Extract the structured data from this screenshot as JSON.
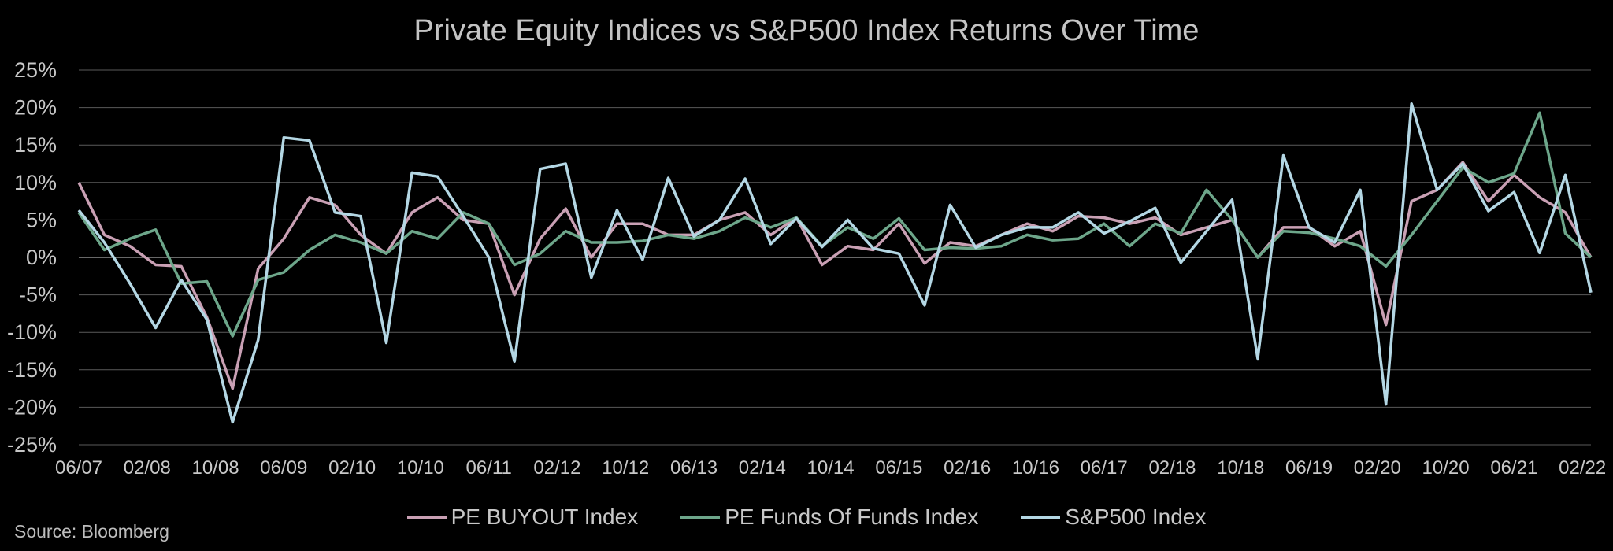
{
  "chart_data": {
    "type": "line",
    "title": "Private Equity Indices vs S&P500 Index Returns Over Time",
    "xlabel": "",
    "ylabel": "",
    "ylim": [
      -25,
      25
    ],
    "y_ticks": [
      25,
      20,
      15,
      10,
      5,
      0,
      -5,
      -10,
      -15,
      -20,
      -25
    ],
    "y_tick_labels": [
      "25%",
      "20%",
      "15%",
      "10%",
      "5%",
      "0%",
      "-5%",
      "-10%",
      "-15%",
      "-20%",
      "-25%"
    ],
    "x_tick_labels": [
      "06/07",
      "02/08",
      "10/08",
      "06/09",
      "02/10",
      "10/10",
      "06/11",
      "02/12",
      "10/12",
      "06/13",
      "02/14",
      "10/14",
      "06/15",
      "02/16",
      "10/16",
      "06/17",
      "02/18",
      "10/18",
      "06/19",
      "02/20",
      "10/20",
      "06/21",
      "02/22"
    ],
    "x_tick_positions": [
      0,
      2.667,
      5.333,
      8,
      10.667,
      13.333,
      16,
      18.667,
      21.333,
      24,
      26.667,
      29.333,
      32,
      34.667,
      37.333,
      40,
      42.667,
      45.333,
      48,
      50.667,
      53.333,
      56,
      58.667
    ],
    "x_count": 60,
    "grid": true,
    "legend_position": "bottom",
    "series": [
      {
        "name": "PE BUYOUT Index",
        "color": "#c9a0b4",
        "values": [
          10,
          3,
          1.5,
          -1,
          -1.2,
          -8,
          -17.5,
          -1.5,
          2.5,
          8,
          7,
          3,
          0.5,
          6,
          8,
          5,
          4.5,
          -5,
          2.5,
          6.5,
          0,
          4.5,
          4.5,
          3,
          3,
          5,
          6,
          3,
          5.3,
          -1,
          1.5,
          1,
          4.5,
          -0.8,
          2,
          1.5,
          3,
          4.5,
          3.5,
          5.5,
          5.3,
          4.5,
          5.3,
          3,
          4,
          5,
          0,
          4,
          4,
          1.5,
          3.5,
          -9,
          7.5,
          9,
          12.7,
          7.5,
          11,
          8,
          6,
          0
        ]
      },
      {
        "name": "PE Funds Of Funds Index",
        "color": "#6da68a",
        "values": [
          6,
          1,
          2.5,
          3.7,
          -3.5,
          -3.2,
          -10.5,
          -3,
          -2,
          1,
          3,
          2,
          0.5,
          3.5,
          2.5,
          6,
          4.5,
          -1,
          0.5,
          3.5,
          2,
          2,
          2.2,
          3,
          2.5,
          3.5,
          5.3,
          4,
          5.3,
          1.5,
          4,
          2.5,
          5.2,
          1,
          1.3,
          1.2,
          1.5,
          3,
          2.3,
          2.5,
          4.5,
          1.5,
          4.5,
          3.2,
          9,
          5,
          0,
          3.5,
          3.3,
          2.5,
          1.5,
          -1.2,
          3,
          7.5,
          12,
          10,
          11.2,
          19.3,
          3.2,
          0
        ]
      },
      {
        "name": "S&P500 Index",
        "color": "#b4d7e4",
        "values": [
          6.3,
          2,
          -3.5,
          -9.4,
          -3,
          -8.3,
          -22,
          -11,
          16,
          15.6,
          6,
          5.5,
          -11.4,
          11.3,
          10.8,
          5.5,
          0,
          -13.9,
          11.8,
          12.5,
          -2.7,
          6.3,
          -0.3,
          10.6,
          2.8,
          5,
          10.5,
          1.8,
          5.2,
          1.4,
          5,
          1.2,
          0.5,
          -6.4,
          7,
          1.3,
          3,
          4,
          4,
          6,
          3.2,
          4.8,
          6.6,
          -0.7,
          3.5,
          7.7,
          -13.5,
          13.6,
          4,
          2,
          9,
          -19.6,
          20.5,
          9,
          12.5,
          6.2,
          8.7,
          0.6,
          11,
          -4.7
        ]
      }
    ]
  },
  "footer": {
    "source": "Source: Bloomberg"
  }
}
